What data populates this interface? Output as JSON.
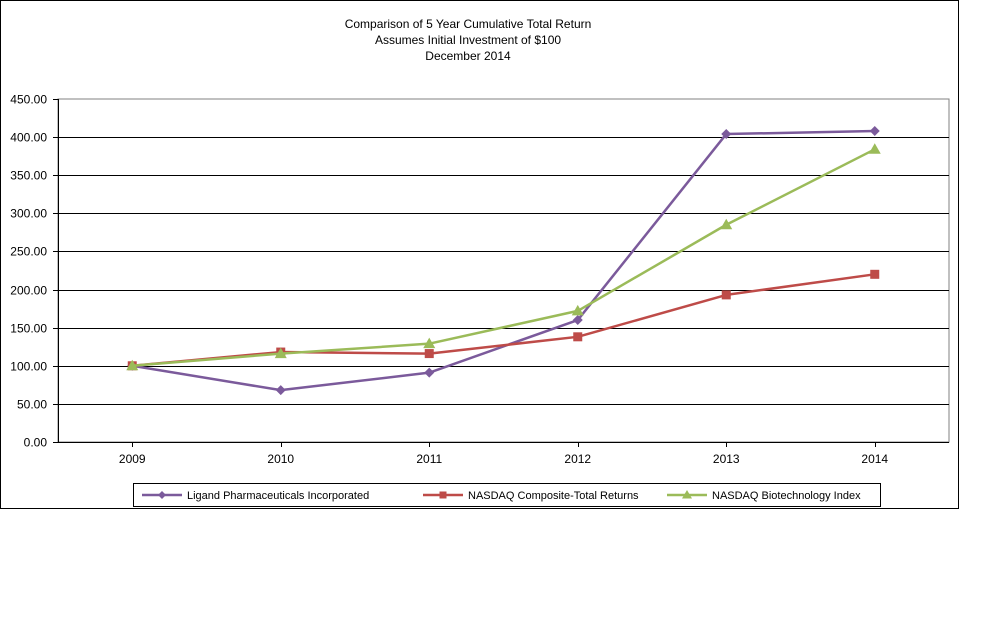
{
  "chart_data": {
    "type": "line",
    "title_lines": [
      "Comparison of 5 Year Cumulative Total Return",
      "Assumes Initial Investment of $100",
      "December 2014"
    ],
    "xlabel": "",
    "ylabel": "",
    "categories": [
      "2009",
      "2010",
      "2011",
      "2012",
      "2013",
      "2014"
    ],
    "ylim": [
      0,
      450
    ],
    "yticks": [
      0,
      50,
      100,
      150,
      200,
      250,
      300,
      350,
      400,
      450
    ],
    "ytick_labels": [
      "0.00",
      "50.00",
      "100.00",
      "150.00",
      "200.00",
      "250.00",
      "300.00",
      "350.00",
      "400.00",
      "450.00"
    ],
    "grid": "horizontal",
    "legend_position": "bottom",
    "series": [
      {
        "name": "Ligand Pharmaceuticals Incorporated",
        "color": "#7b5a9b",
        "marker": "diamond",
        "values": [
          100,
          68,
          91,
          160,
          404,
          408
        ]
      },
      {
        "name": "NASDAQ Composite-Total Returns",
        "color": "#be4b48",
        "marker": "square",
        "values": [
          100,
          118,
          116,
          138,
          193,
          220
        ]
      },
      {
        "name": "NASDAQ Biotechnology Index",
        "color": "#9bbb59",
        "marker": "triangle",
        "values": [
          100,
          116,
          129,
          172,
          285,
          384
        ]
      }
    ]
  }
}
